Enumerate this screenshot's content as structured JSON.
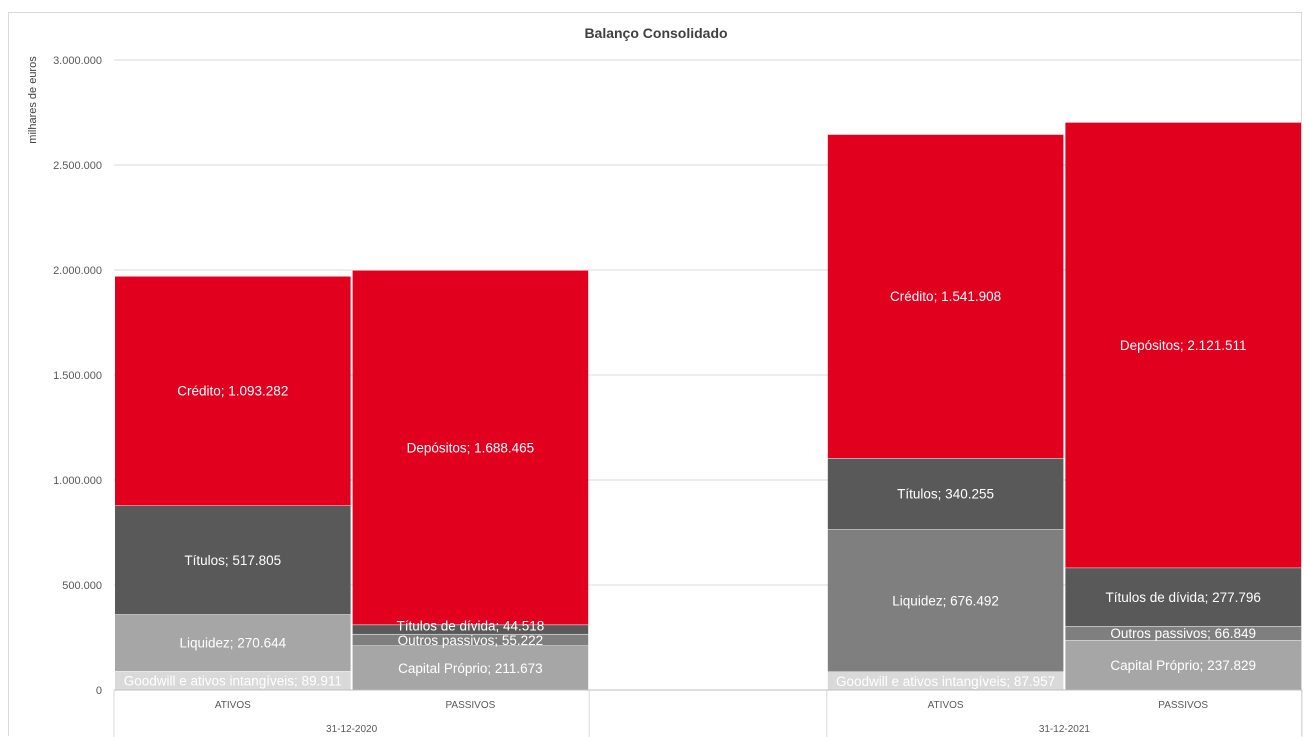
{
  "chart_data": {
    "type": "bar",
    "stacked": true,
    "title": "Balanço Consolidado",
    "ylabel": "milhares de euros",
    "ylim": [
      0,
      3000000
    ],
    "yticks": [
      0,
      500000,
      1000000,
      1500000,
      2000000,
      2500000,
      3000000
    ],
    "ytick_labels": [
      "0",
      "500.000",
      "1.000.000",
      "1.500.000",
      "2.000.000",
      "2.500.000",
      "3.000.000"
    ],
    "grid": true,
    "groups": [
      {
        "label": "31-12-2020",
        "bars": [
          {
            "category": "ATIVOS",
            "segments": [
              {
                "label": "Goodwill e ativos intangíveis; 89.911",
                "value": 89911,
                "color": "#d9d9d9"
              },
              {
                "label": "Liquidez; 270.644",
                "value": 270644,
                "color": "#a6a6a6"
              },
              {
                "label": "Títulos; 517.805",
                "value": 517805,
                "color": "#595959"
              },
              {
                "label": "Crédito; 1.093.282",
                "value": 1093282,
                "color": "#e1001e"
              }
            ]
          },
          {
            "category": "PASSIVOS",
            "segments": [
              {
                "label": "Capital Próprio; 211.673",
                "value": 211673,
                "color": "#a6a6a6"
              },
              {
                "label": "Outros passivos; 55.222",
                "value": 55222,
                "color": "#7f7f7f"
              },
              {
                "label": "Títulos de dívida; 44.518",
                "value": 44518,
                "color": "#595959"
              },
              {
                "label": "Depósitos; 1.688.465",
                "value": 1688465,
                "color": "#e1001e"
              }
            ]
          }
        ]
      },
      {
        "label": "31-12-2021",
        "bars": [
          {
            "category": "ATIVOS",
            "segments": [
              {
                "label": "Goodwill e ativos intangíveis; 87.957",
                "value": 87957,
                "color": "#d9d9d9"
              },
              {
                "label": "Liquidez; 676.492",
                "value": 676492,
                "color": "#7f7f7f"
              },
              {
                "label": "Títulos; 340.255",
                "value": 340255,
                "color": "#595959"
              },
              {
                "label": "Crédito; 1.541.908",
                "value": 1541908,
                "color": "#e1001e"
              }
            ]
          },
          {
            "category": "PASSIVOS",
            "segments": [
              {
                "label": "Capital Próprio; 237.829",
                "value": 237829,
                "color": "#a6a6a6"
              },
              {
                "label": "Outros passivos; 66.849",
                "value": 66849,
                "color": "#7f7f7f"
              },
              {
                "label": "Títulos de dívida; 277.796",
                "value": 277796,
                "color": "#595959"
              },
              {
                "label": "Depósitos; 2.121.511",
                "value": 2121511,
                "color": "#e1001e"
              }
            ]
          }
        ]
      }
    ]
  }
}
